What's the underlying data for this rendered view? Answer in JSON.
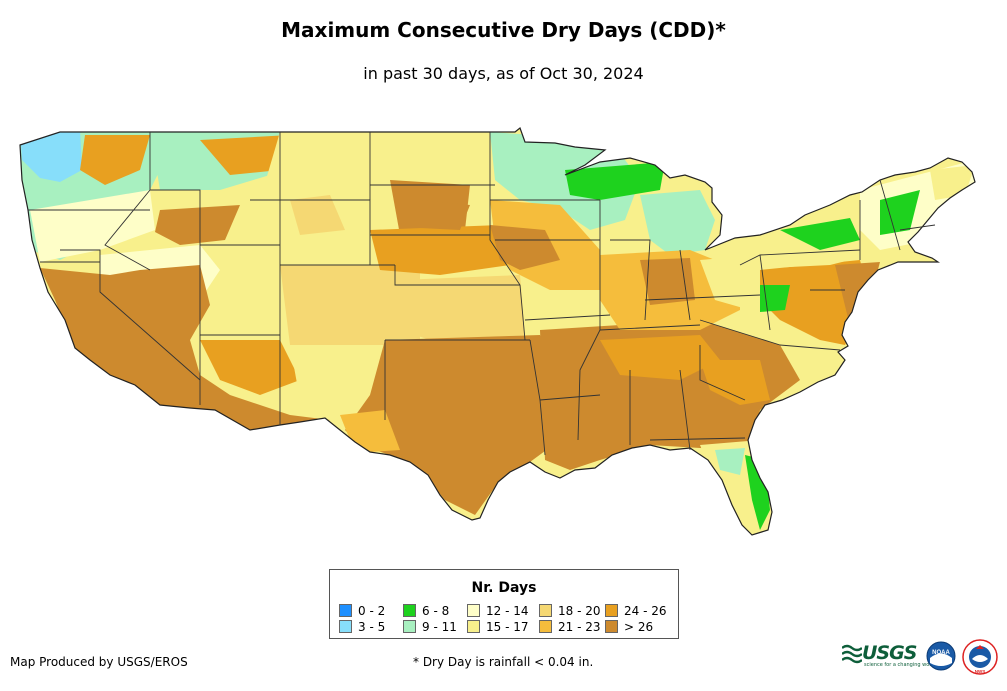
{
  "title": "Maximum Consecutive Dry Days (CDD)*",
  "subtitle": "in past 30 days, as of Oct 30, 2024",
  "legend": {
    "title": "Nr. Days",
    "items": [
      {
        "label": "0 - 2",
        "color": "#1e90ff"
      },
      {
        "label": "3 - 5",
        "color": "#87defa"
      },
      {
        "label": "6 - 8",
        "color": "#1ed21e"
      },
      {
        "label": "9 - 11",
        "color": "#a8f0c0"
      },
      {
        "label": "12 - 14",
        "color": "#fefec8"
      },
      {
        "label": "15 - 17",
        "color": "#f8f08c"
      },
      {
        "label": "18 - 20",
        "color": "#f5d873"
      },
      {
        "label": "21 - 23",
        "color": "#f5bd3c"
      },
      {
        "label": "24 - 26",
        "color": "#e8a020"
      },
      {
        "label": "> 26",
        "color": "#cd8a2e"
      }
    ]
  },
  "footer": {
    "credit": "Map Produced by USGS/EROS",
    "footnote": "* Dry Day is rainfall < 0.04 in."
  },
  "logos": {
    "usgs": "USGS",
    "usgs_tagline": "science for a changing world",
    "noaa": "NOAA",
    "nws": "NWS"
  },
  "colors": {
    "border": "#333333",
    "usgs_green": "#0d5e3a",
    "noaa_blue": "#1a5aa6"
  }
}
